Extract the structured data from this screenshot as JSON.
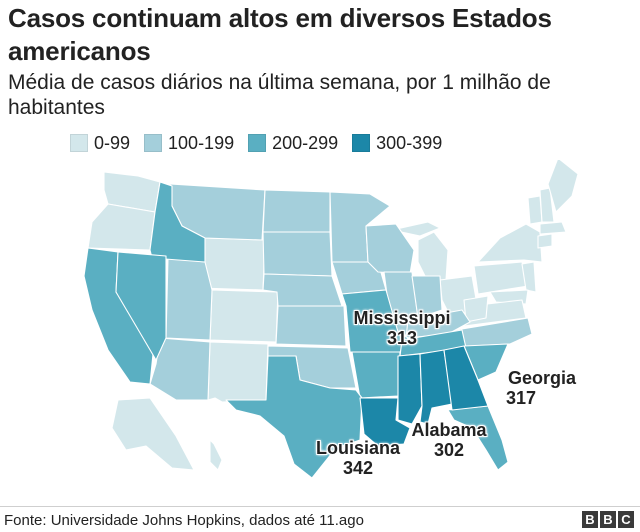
{
  "title": "Casos continuam altos em diversos Estados americanos",
  "subtitle": "Média de casos diários na última semana, por 1 milhão de habitantes",
  "legend": [
    {
      "label": "0-99",
      "color": "#d3e7eb"
    },
    {
      "label": "100-199",
      "color": "#a4cfdb"
    },
    {
      "label": "200-299",
      "color": "#5aafc2"
    },
    {
      "label": "300-399",
      "color": "#1c87a8"
    }
  ],
  "callouts": {
    "mississippi": {
      "name": "Mississippi",
      "value": "313"
    },
    "louisiana": {
      "name": "Louisiana",
      "value": "342"
    },
    "alabama": {
      "name": "Alabama",
      "value": "302"
    },
    "georgia": {
      "name": "Georgia",
      "value": "317"
    }
  },
  "source": "Fonte: Universidade Johns Hopkins, dados até 11.ago",
  "logo": [
    "B",
    "B",
    "C"
  ]
}
